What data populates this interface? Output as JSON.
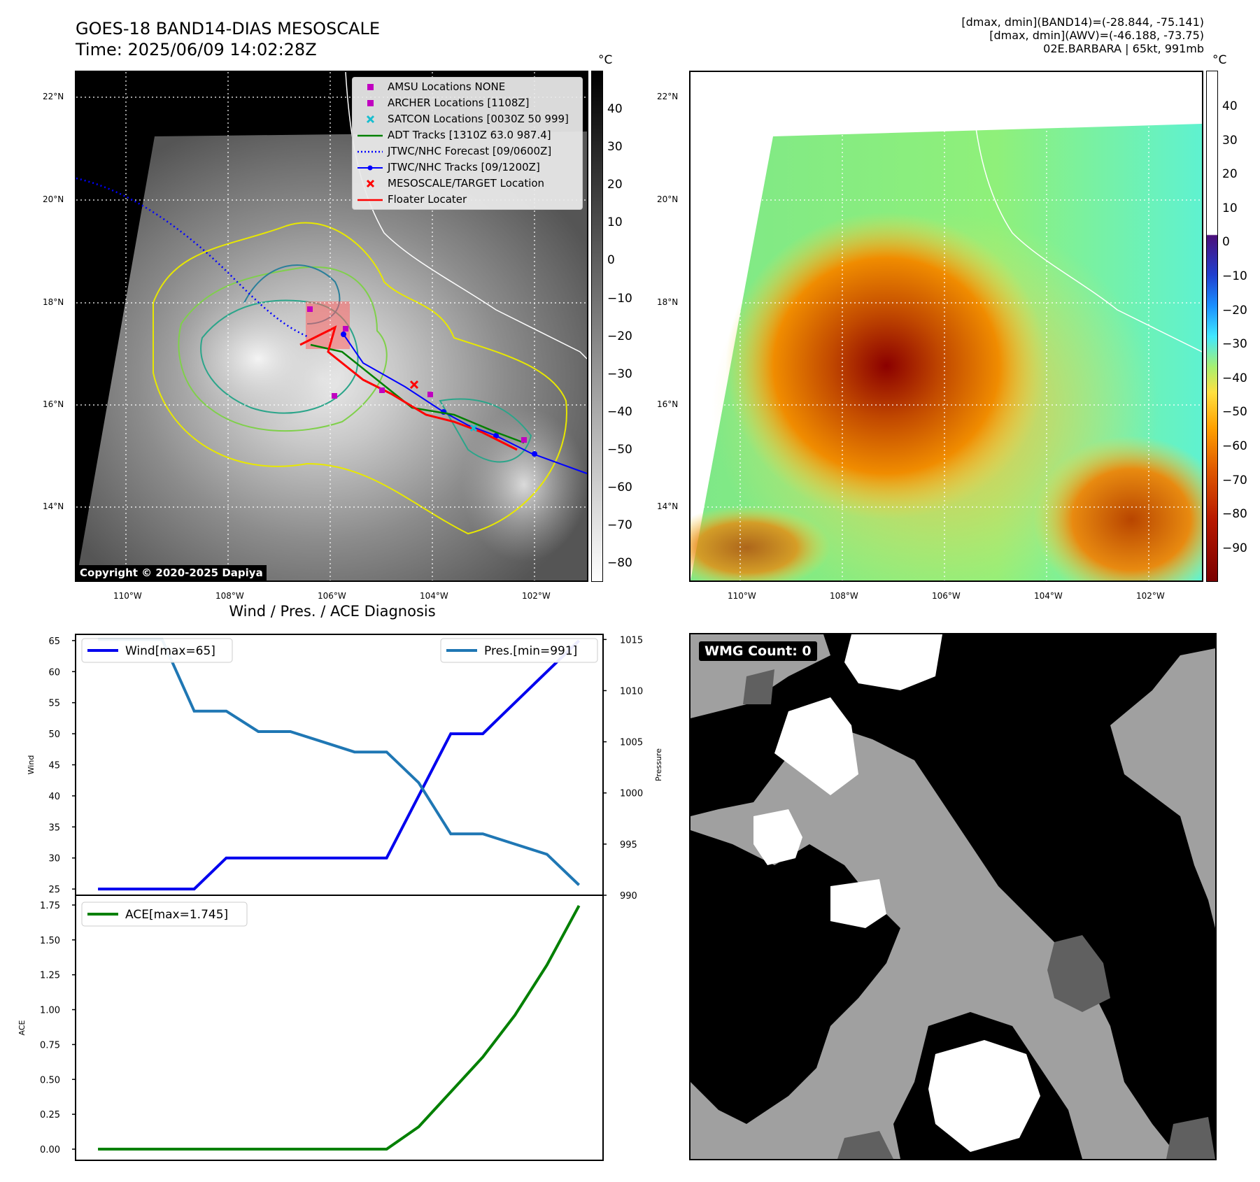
{
  "header": {
    "title_line1": "GOES-18 BAND14-DIAS MESOSCALE",
    "title_line2": "Time: 2025/06/09 14:02:28Z",
    "info_line1": "[dmax, dmin](BAND14)=(-28.844, -75.141)",
    "info_line2": "[dmax, dmin](AWV)=(-46.188, -73.75)",
    "info_line3": "02E.BARBARA | 65kt, 991mb"
  },
  "map": {
    "lat_labels": [
      "22°N",
      "20°N",
      "18°N",
      "16°N",
      "14°N"
    ],
    "lon_labels": [
      "110°W",
      "108°W",
      "106°W",
      "104°W",
      "102°W"
    ],
    "copyright": "Copyright © 2020-2025 Dapiya",
    "legend": [
      {
        "label": "AMSU Locations NONE",
        "marker": "square",
        "color": "#c000c0"
      },
      {
        "label": "ARCHER Locations [1108Z]",
        "marker": "square",
        "color": "#c000c0"
      },
      {
        "label": "SATCON Locations [0030Z 50 999]",
        "marker": "x",
        "color": "#17becf"
      },
      {
        "label": "ADT Tracks [1310Z 63.0 987.4]",
        "marker": "line",
        "color": "#008000"
      },
      {
        "label": "JTWC/NHC Forecast [09/0600Z]",
        "marker": "dotted",
        "color": "#0000ff"
      },
      {
        "label": "JTWC/NHC Tracks [09/1200Z]",
        "marker": "line-dot",
        "color": "#0000ff"
      },
      {
        "label": "MESOSCALE/TARGET Location",
        "marker": "x",
        "color": "#ff0000"
      },
      {
        "label": "Floater Locater",
        "marker": "line",
        "color": "#ff0000"
      }
    ]
  },
  "colorbar_gray": {
    "unit": "°C",
    "ticks": [
      "40",
      "30",
      "20",
      "10",
      "0",
      "−10",
      "−20",
      "−30",
      "−40",
      "−50",
      "−60",
      "−70",
      "−80"
    ]
  },
  "colorbar_color": {
    "unit": "°C",
    "ticks": [
      "40",
      "30",
      "20",
      "10",
      "0",
      "−10",
      "−20",
      "−30",
      "−40",
      "−50",
      "−60",
      "−70",
      "−80",
      "−90"
    ]
  },
  "wmg": {
    "label": "WMG Count: 0"
  },
  "chart_data": [
    {
      "type": "line",
      "title": "Wind / Pres. / ACE Diagnosis",
      "x": [
        0,
        1,
        2,
        3,
        4,
        5,
        6,
        7,
        8,
        9,
        10,
        11,
        12,
        13,
        14,
        15
      ],
      "series": [
        {
          "name": "Wind[max=65]",
          "axis": "left",
          "color": "#0000ee",
          "values": [
            25,
            25,
            25,
            25,
            30,
            30,
            30,
            30,
            30,
            30,
            40,
            50,
            50,
            55,
            60,
            65
          ]
        },
        {
          "name": "Pres.[min=991]",
          "axis": "right",
          "color": "#1f77b4",
          "values": [
            1015,
            1015,
            1015,
            1008,
            1008,
            1006,
            1006,
            1005,
            1004,
            1004,
            1001,
            996,
            996,
            995,
            994,
            991
          ]
        }
      ],
      "ylabel": "Wind",
      "ylim": [
        24,
        66
      ],
      "yticks": [
        "65",
        "60",
        "55",
        "50",
        "45",
        "40",
        "35",
        "30",
        "25"
      ],
      "y2label": "Pressure",
      "y2lim": [
        990,
        1015.5
      ],
      "y2ticks": [
        "1015",
        "1010",
        "1005",
        "1000",
        "995",
        "990"
      ],
      "legend": [
        "top-left",
        "top-right"
      ]
    },
    {
      "type": "line",
      "x": [
        0,
        1,
        2,
        3,
        4,
        5,
        6,
        7,
        8,
        9,
        10,
        11,
        12,
        13,
        14,
        15
      ],
      "series": [
        {
          "name": "ACE[max=1.745]",
          "color": "#008000",
          "values": [
            0,
            0,
            0,
            0,
            0,
            0,
            0,
            0,
            0,
            0,
            0.16,
            0.41,
            0.66,
            0.96,
            1.32,
            1.745
          ]
        }
      ],
      "ylabel": "ACE",
      "ylim": [
        -0.08,
        1.82
      ],
      "yticks": [
        "1.75",
        "1.50",
        "1.25",
        "1.00",
        "0.75",
        "0.50",
        "0.25",
        "0.00"
      ],
      "legend": "top-left"
    }
  ]
}
